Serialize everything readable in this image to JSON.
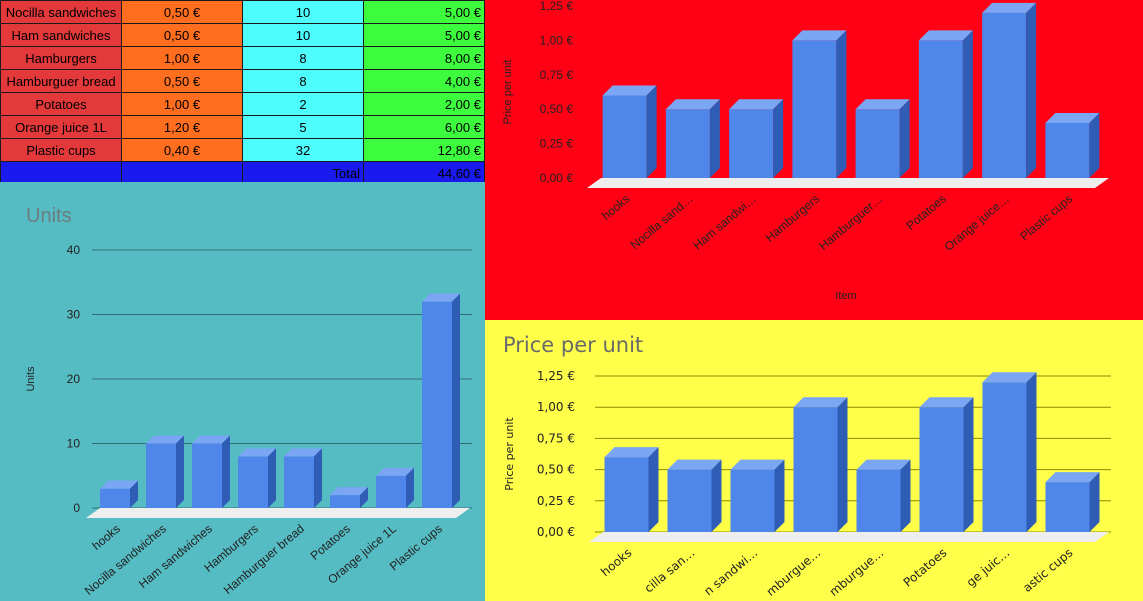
{
  "table": {
    "rows": [
      {
        "item": "Nocilla sandwiches",
        "price": "0,50 €",
        "units": "10",
        "total": "5,00 €"
      },
      {
        "item": "Ham sandwiches",
        "price": "0,50 €",
        "units": "10",
        "total": "5,00 €"
      },
      {
        "item": "Hamburgers",
        "price": "1,00 €",
        "units": "8",
        "total": "8,00 €"
      },
      {
        "item": "Hamburguer bread",
        "price": "0,50 €",
        "units": "8",
        "total": "4,00 €"
      },
      {
        "item": "Potatoes",
        "price": "1,00 €",
        "units": "2",
        "total": "2,00 €"
      },
      {
        "item": "Orange juice 1L",
        "price": "1,20 €",
        "units": "5",
        "total": "6,00 €"
      },
      {
        "item": "Plastic cups",
        "price": "0,40 €",
        "units": "32",
        "total": "12,80 €"
      }
    ],
    "total_label": "Total",
    "total_value": "44,60 €"
  },
  "colors": {
    "item": "#e4393b",
    "price": "#ff6d1f",
    "units": "#4dfcfc",
    "total": "#3dfb3d",
    "total_row": "#1a1aee",
    "units_bg": "#56bcc4",
    "red_bg": "#ff0015",
    "yellow_bg": "#ffff4a",
    "bar": "#4f86ea"
  },
  "chart_data": [
    {
      "type": "bar",
      "title": "Units",
      "xlabel": "",
      "ylabel": "Units",
      "categories": [
        "hooks",
        "Nocilla sandwiches",
        "Ham sandwiches",
        "Hamburgers",
        "Hamburguer bread",
        "Potatoes",
        "Orange juice 1L",
        "Plastic cups"
      ],
      "values": [
        3,
        10,
        10,
        8,
        8,
        2,
        5,
        32
      ],
      "ylim": [
        0,
        40
      ],
      "yticks": [
        "0",
        "10",
        "20",
        "30",
        "40"
      ],
      "grid": true,
      "style": "3d"
    },
    {
      "type": "bar",
      "title": "",
      "xlabel": "Item",
      "ylabel": "Price per unit",
      "categories": [
        "hooks",
        "Nocilla sand…",
        "Ham sandwi…",
        "Hamburgers",
        "Hamburguer…",
        "Potatoes",
        "Orange juice…",
        "Plastic cups"
      ],
      "values": [
        0.6,
        0.5,
        0.5,
        1.0,
        0.5,
        1.0,
        1.2,
        0.4
      ],
      "ylim": [
        0,
        1.25
      ],
      "yticks": [
        "0,00 €",
        "0,25 €",
        "0,50 €",
        "0,75 €",
        "1,00 €",
        "1,25 €"
      ],
      "grid": false,
      "style": "3d"
    },
    {
      "type": "bar",
      "title": "Price per unit",
      "xlabel": "",
      "ylabel": "Price per unit",
      "categories": [
        "hooks",
        "cilla san…",
        "n sandwi…",
        "mburgue…",
        "mburgue…",
        "Potatoes",
        "ge juic…",
        "astic cups"
      ],
      "values": [
        0.6,
        0.5,
        0.5,
        1.0,
        0.5,
        1.0,
        1.2,
        0.4
      ],
      "ylim": [
        0,
        1.25
      ],
      "yticks": [
        "0,00 €",
        "0,25 €",
        "0,50 €",
        "0,75 €",
        "1,00 €",
        "1,25 €"
      ],
      "grid": true,
      "style": "3d"
    }
  ]
}
